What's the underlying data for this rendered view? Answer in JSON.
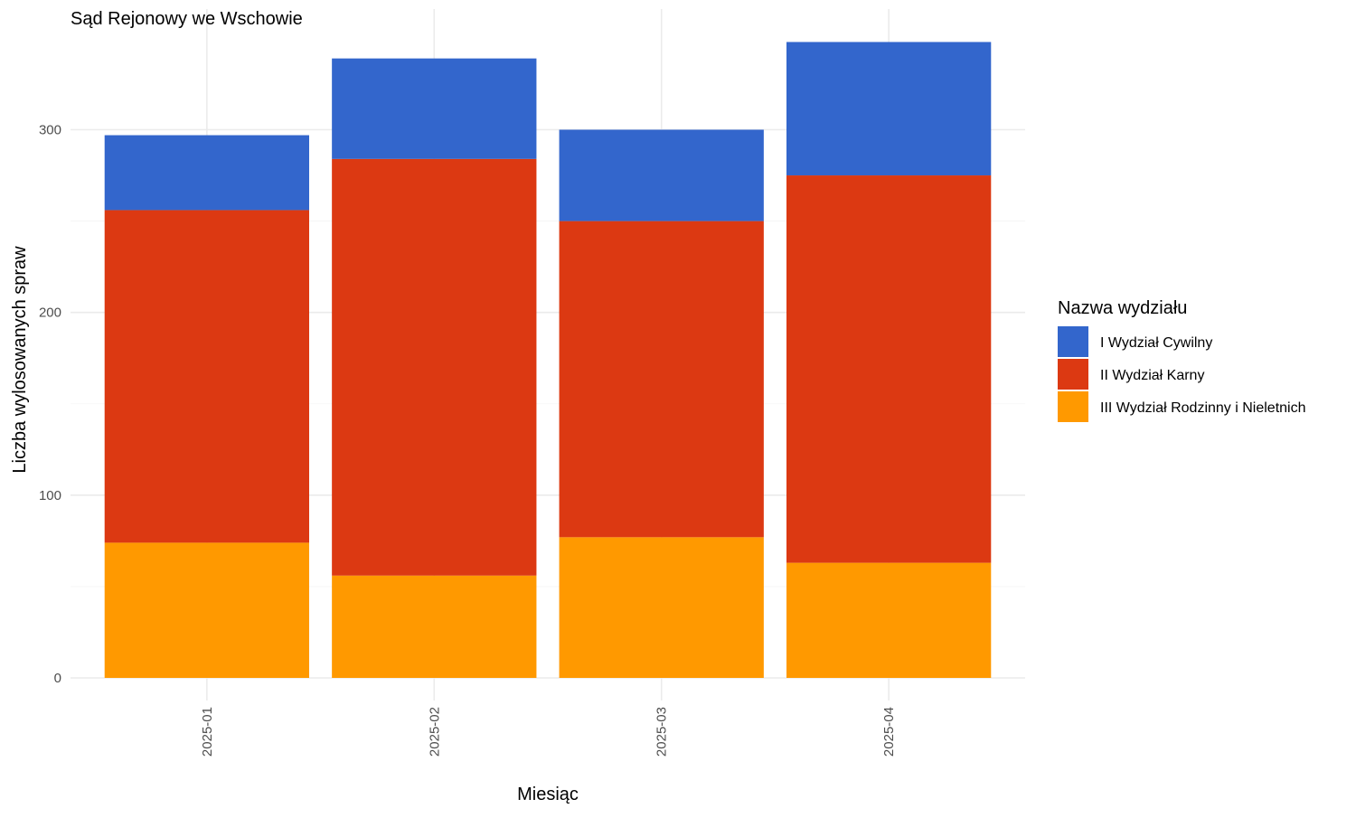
{
  "chart_data": {
    "type": "bar",
    "stacked": true,
    "title": "Sąd Rejonowy we Wschowie",
    "xlabel": "Miesiąc",
    "ylabel": "Liczba wylosowanych spraw",
    "categories": [
      "2025-01",
      "2025-02",
      "2025-03",
      "2025-04"
    ],
    "ylim": [
      0,
      365
    ],
    "yticks": [
      0,
      100,
      200,
      300
    ],
    "grid": true,
    "legend": {
      "title": "Nazwa wydziału",
      "position": "right"
    },
    "series": [
      {
        "name": "III Wydział Rodzinny i Nieletnich",
        "color": "#FF9900",
        "values": [
          74,
          56,
          77,
          63
        ]
      },
      {
        "name": "II Wydział Karny",
        "color": "#DC3912",
        "values": [
          182,
          228,
          173,
          212
        ]
      },
      {
        "name": "I Wydział Cywilny",
        "color": "#3366CC",
        "values": [
          41,
          55,
          50,
          73
        ]
      }
    ],
    "legend_order": [
      "I Wydział Cywilny",
      "II Wydział Karny",
      "III Wydział Rodzinny i Nieletnich"
    ]
  }
}
